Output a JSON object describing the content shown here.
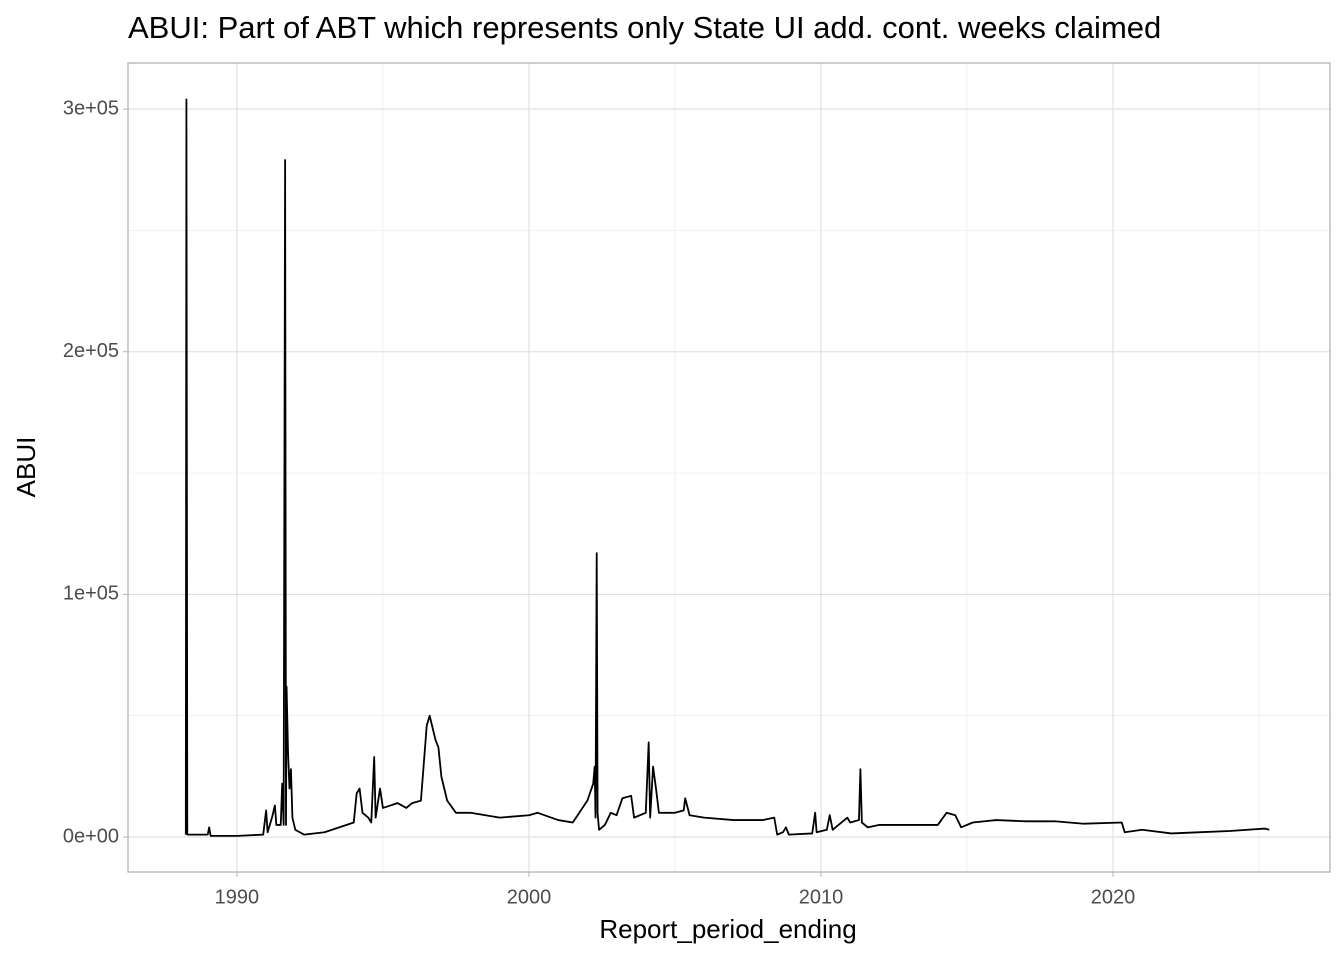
{
  "chart_data": {
    "type": "line",
    "title": "ABUI: Part of ABT which represents only State UI add. cont. weeks claimed",
    "x_label": "Report_period_ending",
    "y_label": "ABUI",
    "x": [
      1988.25,
      1988.27,
      1988.3,
      1989.0,
      1989.05,
      1989.1,
      1990.0,
      1990.9,
      1991.0,
      1991.05,
      1991.2,
      1991.3,
      1991.35,
      1991.5,
      1991.55,
      1991.6,
      1991.65,
      1991.68,
      1991.7,
      1991.75,
      1991.8,
      1991.85,
      1991.9,
      1992.0,
      1992.3,
      1993.0,
      1993.5,
      1994.0,
      1994.1,
      1994.2,
      1994.3,
      1994.5,
      1994.6,
      1994.7,
      1994.75,
      1994.8,
      1994.9,
      1995.0,
      1995.5,
      1995.8,
      1996.0,
      1996.3,
      1996.5,
      1996.6,
      1996.8,
      1996.9,
      1997.0,
      1997.2,
      1997.5,
      1998.0,
      1999.0,
      2000.0,
      2000.3,
      2001.0,
      2001.5,
      2002.0,
      2002.2,
      2002.25,
      2002.28,
      2002.32,
      2002.35,
      2002.4,
      2002.6,
      2002.8,
      2003.0,
      2003.2,
      2003.5,
      2003.6,
      2004.0,
      2004.1,
      2004.15,
      2004.25,
      2004.35,
      2004.45,
      2005.0,
      2005.3,
      2005.35,
      2005.5,
      2006.0,
      2007.0,
      2008.0,
      2008.4,
      2008.5,
      2008.7,
      2008.8,
      2008.9,
      2009.7,
      2009.8,
      2009.85,
      2010.2,
      2010.3,
      2010.4,
      2010.6,
      2010.9,
      2011.0,
      2011.3,
      2011.35,
      2011.4,
      2011.6,
      2012.0,
      2013.0,
      2014.0,
      2014.3,
      2014.6,
      2014.8,
      2015.2,
      2016.0,
      2017.0,
      2018.0,
      2019.0,
      2020.3,
      2020.4,
      2021.0,
      2022.0,
      2023.0,
      2024.0,
      2025.2,
      2025.35
    ],
    "values": [
      1000,
      304000,
      1000,
      1000,
      4000,
      500,
      500,
      1000,
      11000,
      2000,
      8000,
      13000,
      5000,
      5000,
      22000,
      5000,
      279000,
      5000,
      62000,
      35000,
      20000,
      28000,
      8000,
      3000,
      1000,
      2000,
      4000,
      6000,
      18000,
      20000,
      10000,
      8000,
      6000,
      33000,
      8000,
      12000,
      20000,
      12000,
      14000,
      12000,
      14000,
      15000,
      46000,
      50000,
      40000,
      37000,
      25000,
      15000,
      10000,
      10000,
      8000,
      9000,
      10000,
      7000,
      6000,
      15000,
      22000,
      29000,
      8000,
      117000,
      10000,
      3000,
      5000,
      10000,
      9000,
      16000,
      17000,
      8000,
      10000,
      39000,
      8000,
      29000,
      20000,
      10000,
      10000,
      11000,
      16000,
      9000,
      8000,
      7000,
      7000,
      8000,
      1000,
      2000,
      4000,
      1000,
      1500,
      10000,
      2000,
      3000,
      9000,
      3000,
      5000,
      8000,
      6000,
      7000,
      28000,
      6000,
      4000,
      5000,
      5000,
      5000,
      10000,
      9000,
      4000,
      6000,
      7000,
      6500,
      6500,
      5500,
      6000,
      2000,
      3000,
      1500,
      2000,
      2500,
      3500,
      3000
    ],
    "color": "#000000",
    "xlim": [
      1986.27,
      2027.43
    ],
    "ylim": [
      -14400,
      319000
    ],
    "xticks": [
      1990,
      2000,
      2010,
      2020
    ],
    "yticks": [
      {
        "value": 0,
        "label": "0e+00"
      },
      {
        "value": 100000,
        "label": "1e+05"
      },
      {
        "value": 200000,
        "label": "2e+05"
      },
      {
        "value": 300000,
        "label": "3e+05"
      }
    ],
    "grid": true
  }
}
